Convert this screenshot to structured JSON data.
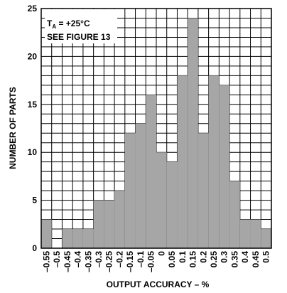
{
  "chart_data": {
    "type": "bar",
    "title": "",
    "xlabel": "OUTPUT ACCURACY – %",
    "ylabel": "NUMBER OF PARTS",
    "ylim": [
      0,
      25
    ],
    "yticks": [
      "0",
      "5",
      "10",
      "15",
      "20",
      "25"
    ],
    "grid": "on",
    "categories": [
      "–0.55",
      "–0.5",
      "–0.45",
      "–0.4",
      "–0.35",
      "–0.3",
      "–0.25",
      "–0.2",
      "–0.15",
      "–0.1",
      "–0.05",
      "0",
      "0.05",
      "0.1",
      "0.15",
      "0.2",
      "0.25",
      "0.3",
      "0.35",
      "0.4",
      "0.45",
      "0.5"
    ],
    "values": [
      3,
      0,
      2,
      2,
      2,
      5,
      5,
      6,
      12,
      13,
      16,
      10,
      9,
      18,
      24,
      12,
      18,
      17,
      7,
      3,
      3,
      2
    ],
    "bar_color": "#a6a6a6",
    "annotation": {
      "line1_prefix": "T",
      "line1_sub": "A",
      "line1_suffix": " = +25°C",
      "line2": "SEE FIGURE 13"
    }
  }
}
